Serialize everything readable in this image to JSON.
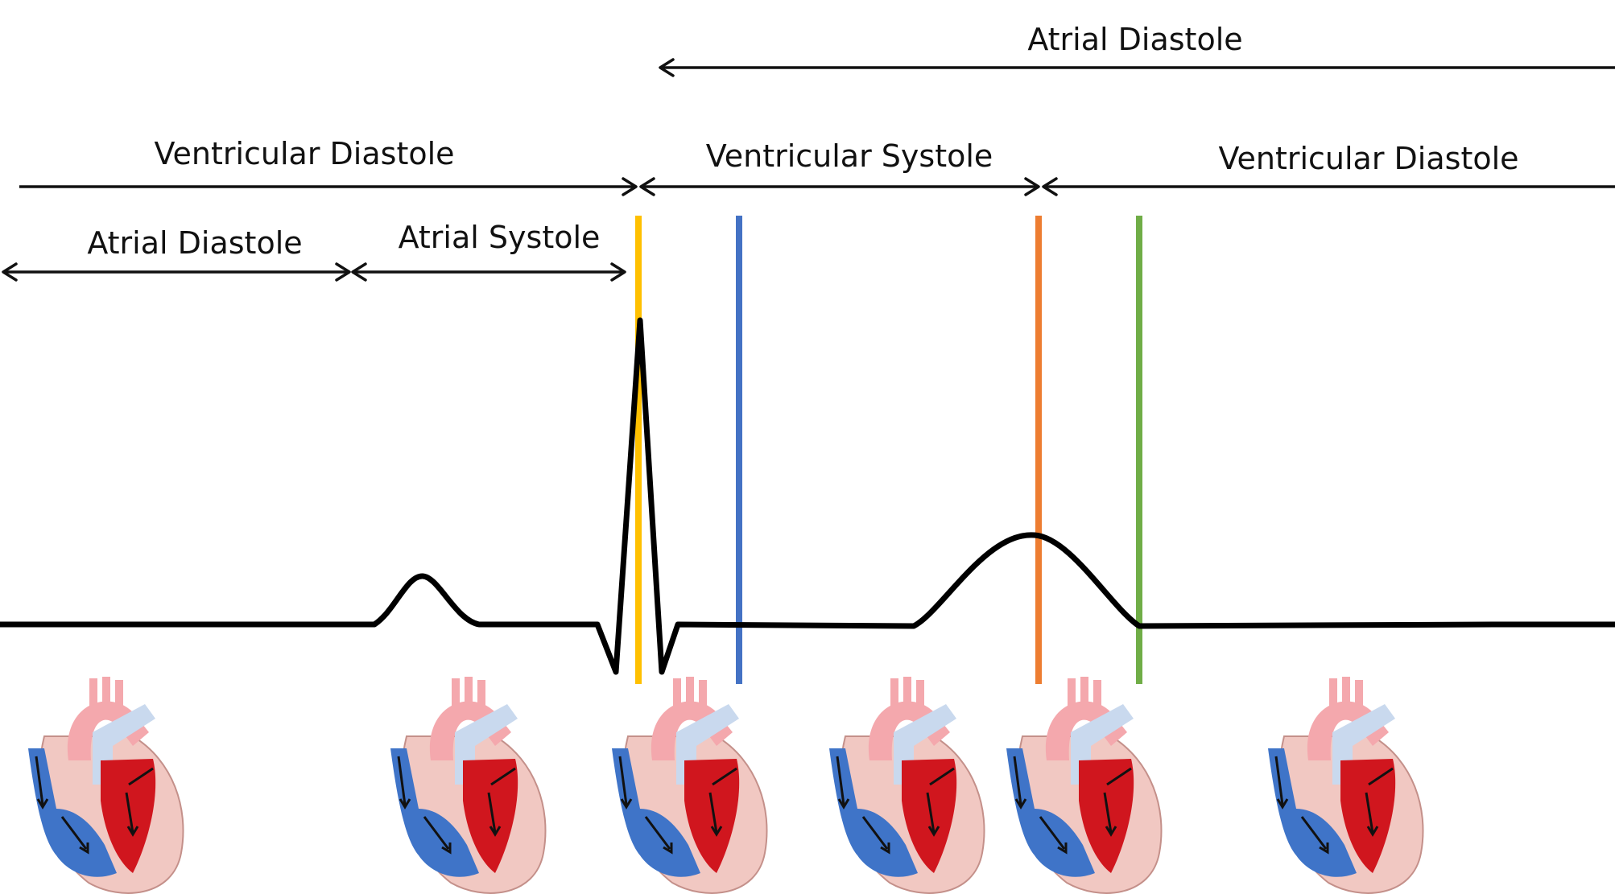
{
  "labels": {
    "atrial_diastole_top": "Atrial Diastole",
    "ventricular_diastole_left": "Ventricular Diastole",
    "ventricular_systole": "Ventricular Systole",
    "ventricular_diastole_right": "Ventricular Diastole",
    "atrial_diastole_left": "Atrial Diastole",
    "atrial_systole": "Atrial Systole"
  },
  "marker_colors": {
    "yellow": "#FFC000",
    "blue": "#4472C4",
    "orange": "#ED7D31",
    "green": "#70AD47"
  },
  "heart_colors": {
    "deoxygenated": "#3F74C8",
    "deoxygenated_light": "#C9D9EE",
    "oxygenated": "#D0161E",
    "oxygenated_light": "#F2B6B6",
    "muscle": "#F1C8C2",
    "aorta_light": "#F4A8AD"
  }
}
